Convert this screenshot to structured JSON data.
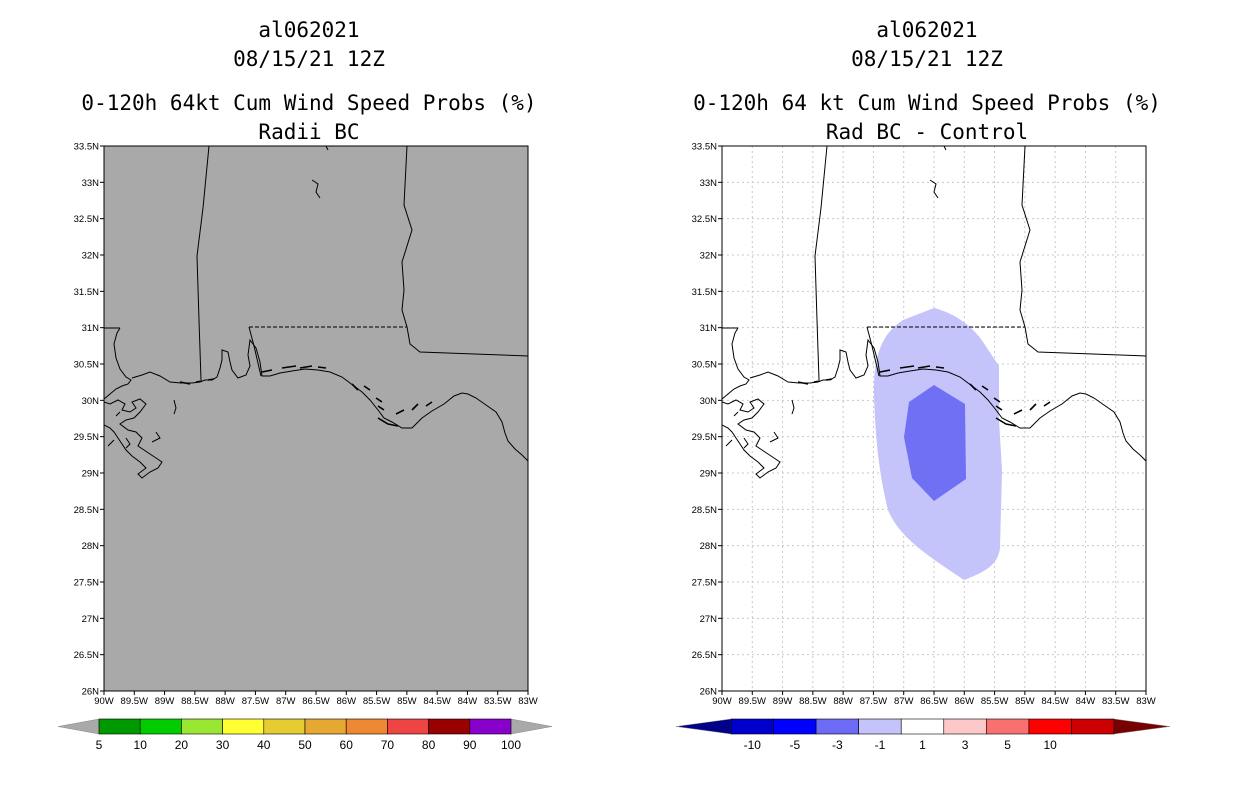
{
  "left_panel": {
    "title": {
      "storm_id": "al062021",
      "datetime": "08/15/21 12Z",
      "product": "0-120h 64kt Cum Wind Speed Probs (%)",
      "subtitle": "Radii BC"
    },
    "map_background": "#a9a9a9",
    "colorbar": {
      "labels": [
        "5",
        "10",
        "20",
        "30",
        "40",
        "50",
        "60",
        "70",
        "80",
        "90",
        "100"
      ],
      "colors": [
        "#009900",
        "#00cc00",
        "#99e633",
        "#ffff33",
        "#e6cc33",
        "#e6a833",
        "#ee8833",
        "#ee4444",
        "#990000",
        "#8800cc"
      ],
      "under_color": "#a9a9a9",
      "over_color": "#a9a9a9"
    }
  },
  "right_panel": {
    "title": {
      "storm_id": "al062021",
      "datetime": "08/15/21 12Z",
      "product": "0-120h 64 kt Cum Wind Speed Probs (%)",
      "subtitle": "Rad BC - Control"
    },
    "map_background": "#ffffff",
    "contour_fills": [
      {
        "range": "-3 to -1",
        "color": "#c4c4fa"
      },
      {
        "range": "-5 to -3",
        "color": "#7070f5"
      }
    ],
    "colorbar": {
      "labels": [
        "-10",
        "-5",
        "-3",
        "-1",
        "1",
        "3",
        "5",
        "10"
      ],
      "colors": [
        "#0000cc",
        "#0000ff",
        "#6b6bf5",
        "#c4c4fa",
        "#ffffff",
        "#fcc8c8",
        "#f87070",
        "#ff0000",
        "#cc0000"
      ],
      "under_color": "#000088",
      "over_color": "#770000"
    }
  },
  "axes": {
    "lat_labels": [
      "33.5N",
      "33N",
      "32.5N",
      "32N",
      "31.5N",
      "31N",
      "30.5N",
      "30N",
      "29.5N",
      "29N",
      "28.5N",
      "28N",
      "27.5N",
      "27N",
      "26.5N",
      "26N"
    ],
    "lon_labels": [
      "90W",
      "89.5W",
      "89W",
      "88.5W",
      "88W",
      "87.5W",
      "87W",
      "86.5W",
      "86W",
      "85.5W",
      "85W",
      "84.5W",
      "84W",
      "83.5W",
      "83W"
    ]
  },
  "colors": {
    "coast": "#000000",
    "grid": "#c8c8c8"
  }
}
